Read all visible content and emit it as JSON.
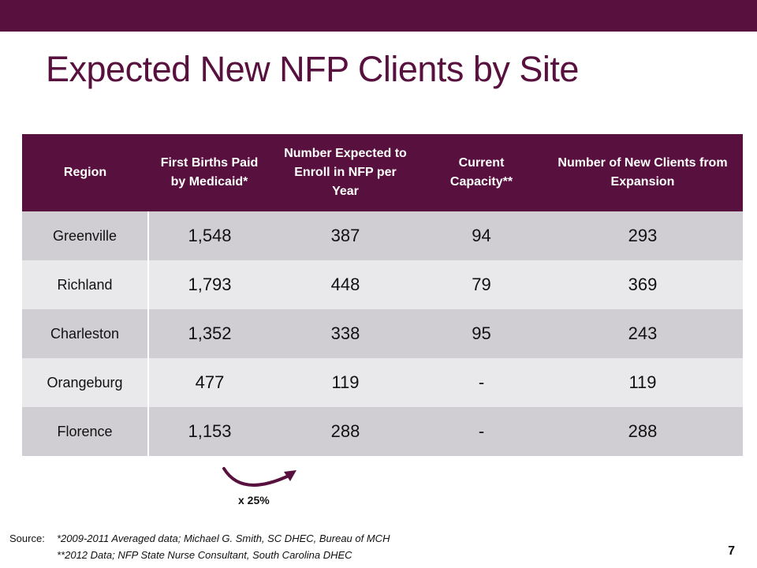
{
  "title": "Expected New NFP Clients by Site",
  "table": {
    "headers": [
      "Region",
      "First Births Paid by Medicaid*",
      "Number Expected to Enroll in NFP per Year",
      "Current Capacity**",
      "Number of New Clients from Expansion"
    ],
    "rows": [
      [
        "Greenville",
        "1,548",
        "387",
        "94",
        "293"
      ],
      [
        "Richland",
        "1,793",
        "448",
        "79",
        "369"
      ],
      [
        "Charleston",
        "1,352",
        "338",
        "95",
        "243"
      ],
      [
        "Orangeburg",
        "477",
        "119",
        "-",
        "119"
      ],
      [
        "Florence",
        "1,153",
        "288",
        "-",
        "288"
      ]
    ]
  },
  "annotation": {
    "multiplier": "x 25%",
    "arrow_icon": "curved-arrow-icon"
  },
  "source": {
    "label": "Source:",
    "lines": [
      "*2009-2011 Averaged data; Michael G. Smith, SC DHEC, Bureau of MCH",
      "**2012 Data; NFP State Nurse Consultant, South Carolina DHEC"
    ]
  },
  "page_number": "7",
  "colors": {
    "accent": "#58103f",
    "row_dark": "#d1ced3",
    "row_light": "#e9e8eb"
  }
}
